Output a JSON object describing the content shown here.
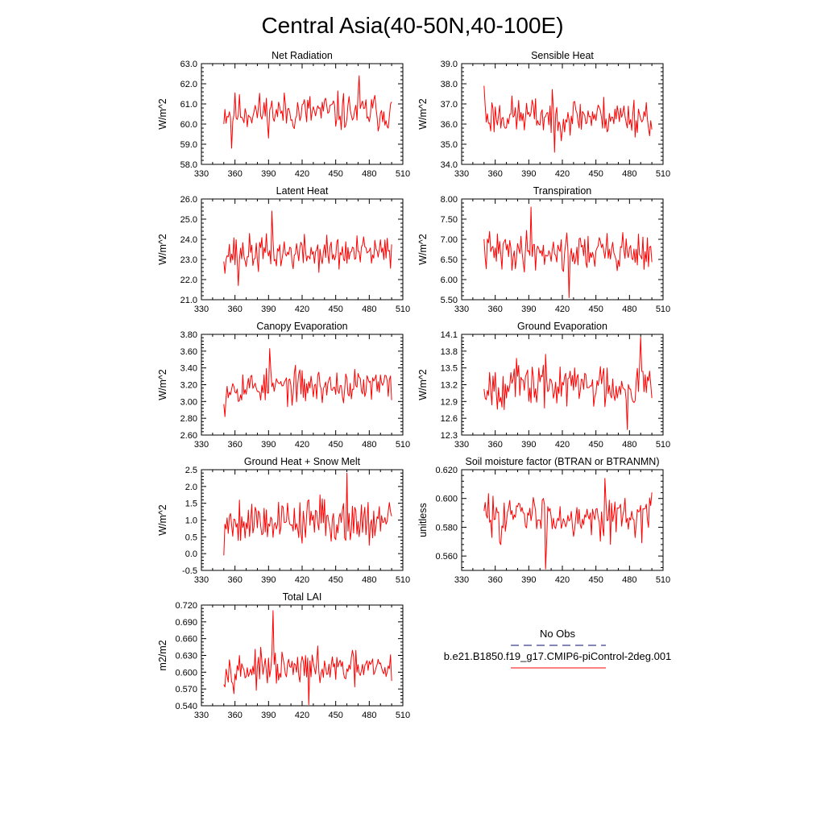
{
  "figure_title": "Central Asia(40-50N,40-100E)",
  "colors": {
    "series": "#ff0000",
    "obs": "#3c3c8c",
    "frame": "#000000"
  },
  "legend": {
    "obs_label": "No Obs",
    "model_label": "b.e21.B1850.f19_g17.CMIP6-piControl-2deg.001"
  },
  "chart_data": [
    {
      "type": "line",
      "title": "Net Radiation",
      "ylabel": "W/m^2",
      "xlim": [
        330,
        510
      ],
      "xticks": [
        330,
        360,
        390,
        420,
        450,
        480,
        510
      ],
      "ylim": [
        58.0,
        63.0
      ],
      "yticks": [
        58.0,
        59.0,
        60.0,
        61.0,
        62.0,
        63.0
      ],
      "ydec": 1,
      "xstart": 350,
      "xend": 500,
      "mean": 60.6,
      "amp": 0.7,
      "seed": 11,
      "min_point": [
        357,
        58.8
      ],
      "max_point": [
        471,
        62.4
      ]
    },
    {
      "type": "line",
      "title": "Sensible Heat",
      "ylabel": "W/m^2",
      "xlim": [
        330,
        510
      ],
      "xticks": [
        330,
        360,
        390,
        420,
        450,
        480,
        510
      ],
      "ylim": [
        34.0,
        39.0
      ],
      "yticks": [
        34.0,
        35.0,
        36.0,
        37.0,
        38.0,
        39.0
      ],
      "ydec": 1,
      "xstart": 350,
      "xend": 500,
      "mean": 36.4,
      "amp": 0.7,
      "seed": 23,
      "min_point": [
        413,
        34.6
      ],
      "max_point": [
        350,
        37.9
      ]
    },
    {
      "type": "line",
      "title": "Latent Heat",
      "ylabel": "W/m^2",
      "xlim": [
        330,
        510
      ],
      "xticks": [
        330,
        360,
        390,
        420,
        450,
        480,
        510
      ],
      "ylim": [
        21.0,
        26.0
      ],
      "yticks": [
        21.0,
        22.0,
        23.0,
        24.0,
        25.0,
        26.0
      ],
      "ydec": 1,
      "xstart": 350,
      "xend": 500,
      "mean": 23.3,
      "amp": 0.65,
      "seed": 37,
      "min_point": [
        363,
        21.7
      ],
      "max_point": [
        393,
        25.4
      ]
    },
    {
      "type": "line",
      "title": "Transpiration",
      "ylabel": "W/m^2",
      "xlim": [
        330,
        510
      ],
      "xticks": [
        330,
        360,
        390,
        420,
        450,
        480,
        510
      ],
      "ylim": [
        5.5,
        8.0
      ],
      "yticks": [
        5.5,
        6.0,
        6.5,
        7.0,
        7.5,
        8.0
      ],
      "ydec": 2,
      "xstart": 350,
      "xend": 500,
      "mean": 6.7,
      "amp": 0.35,
      "seed": 41,
      "min_point": [
        426,
        5.55
      ],
      "max_point": [
        392,
        7.8
      ]
    },
    {
      "type": "line",
      "title": "Canopy Evaporation",
      "ylabel": "W/m^2",
      "xlim": [
        330,
        510
      ],
      "xticks": [
        330,
        360,
        390,
        420,
        450,
        480,
        510
      ],
      "ylim": [
        2.6,
        3.8
      ],
      "yticks": [
        2.6,
        2.8,
        3.0,
        3.2,
        3.4,
        3.6,
        3.8
      ],
      "ydec": 2,
      "xstart": 350,
      "xend": 500,
      "mean": 3.18,
      "amp": 0.15,
      "seed": 53,
      "min_point": [
        351,
        2.82
      ],
      "max_point": [
        391,
        3.63
      ]
    },
    {
      "type": "line",
      "title": "Ground Evaporation",
      "ylabel": "W/m^2",
      "xlim": [
        330,
        510
      ],
      "xticks": [
        330,
        360,
        390,
        420,
        450,
        480,
        510
      ],
      "ylim": [
        12.3,
        14.1
      ],
      "yticks": [
        12.3,
        12.6,
        12.9,
        13.2,
        13.5,
        13.8,
        14.1
      ],
      "ydec": 1,
      "xstart": 350,
      "xend": 500,
      "mean": 13.2,
      "amp": 0.3,
      "seed": 67,
      "min_point": [
        478,
        12.4
      ],
      "max_point": [
        490,
        14.05
      ]
    },
    {
      "type": "line",
      "title": "Ground Heat + Snow Melt",
      "ylabel": "W/m^2",
      "xlim": [
        330,
        510
      ],
      "xticks": [
        330,
        360,
        390,
        420,
        450,
        480,
        510
      ],
      "ylim": [
        -0.5,
        2.5
      ],
      "yticks": [
        -0.5,
        0.0,
        0.5,
        1.0,
        1.5,
        2.0,
        2.5
      ],
      "ydec": 1,
      "xstart": 350,
      "xend": 500,
      "mean": 1.0,
      "amp": 0.5,
      "seed": 79,
      "min_point": [
        350,
        -0.05
      ],
      "max_point": [
        460,
        2.4
      ]
    },
    {
      "type": "line",
      "title": "Soil moisture factor (BTRAN or BTRANMN)",
      "ylabel": "unitless",
      "xlim": [
        330,
        510
      ],
      "xticks": [
        330,
        360,
        390,
        420,
        450,
        480,
        510
      ],
      "ylim": [
        0.55,
        0.62
      ],
      "yticks": [
        0.56,
        0.58,
        0.6,
        0.62
      ],
      "ydec": 3,
      "xstart": 350,
      "xend": 500,
      "mean": 0.588,
      "amp": 0.011,
      "seed": 83,
      "min_point": [
        405,
        0.551
      ],
      "max_point": [
        458,
        0.614
      ]
    },
    {
      "type": "line",
      "title": "Total LAI",
      "ylabel": "m2/m2",
      "xlim": [
        330,
        510
      ],
      "xticks": [
        330,
        360,
        390,
        420,
        450,
        480,
        510
      ],
      "ylim": [
        0.54,
        0.72
      ],
      "yticks": [
        0.54,
        0.57,
        0.6,
        0.63,
        0.66,
        0.69,
        0.72
      ],
      "ydec": 3,
      "xstart": 350,
      "xend": 500,
      "mean": 0.605,
      "amp": 0.022,
      "seed": 97,
      "min_point": [
        426,
        0.542
      ],
      "max_point": [
        394,
        0.71
      ]
    }
  ]
}
